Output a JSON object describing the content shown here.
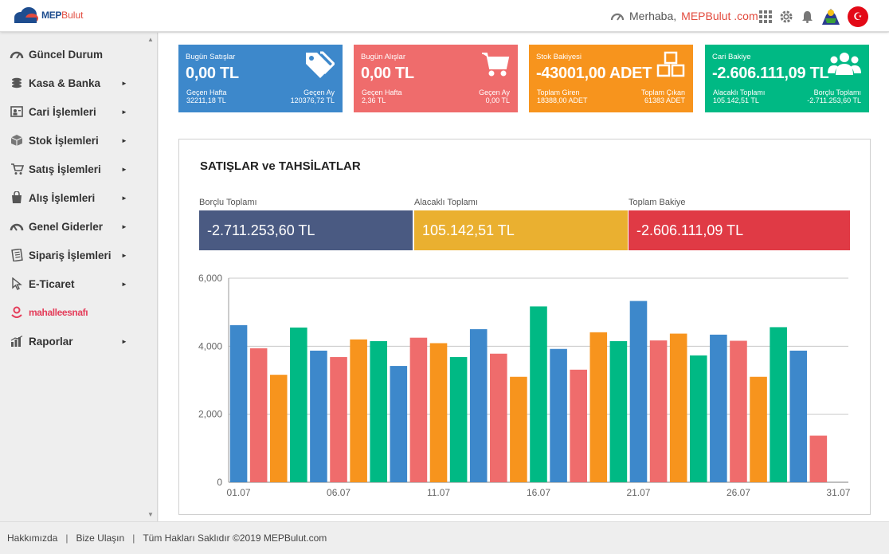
{
  "header": {
    "logo_text": "MEP",
    "logo_text2": "Bulut",
    "greeting": "Merhaba,",
    "user": "MEPBulut .com"
  },
  "sidebar": {
    "items": [
      {
        "label": "Güncel Durum",
        "icon": "speedometer-icon",
        "arrow": ""
      },
      {
        "label": "Kasa & Banka",
        "icon": "coins-icon",
        "arrow": "►"
      },
      {
        "label": "Cari İşlemleri",
        "icon": "contact-card-icon",
        "arrow": "►"
      },
      {
        "label": "Stok İşlemleri",
        "icon": "box-icon",
        "arrow": "►"
      },
      {
        "label": "Satış İşlemleri",
        "icon": "cart-icon",
        "arrow": "►"
      },
      {
        "label": "Alış İşlemleri",
        "icon": "shopping-bag-icon",
        "arrow": "►"
      },
      {
        "label": "Genel Giderler",
        "icon": "gauge-icon",
        "arrow": "►"
      },
      {
        "label": "Sipariş İşlemleri",
        "icon": "order-list-icon",
        "arrow": "►"
      },
      {
        "label": "E-Ticaret",
        "icon": "cursor-icon",
        "arrow": "►"
      },
      {
        "label": "mahalleesnafı",
        "icon": "location-pin-icon",
        "arrow": ""
      },
      {
        "label": "Raporlar",
        "icon": "bar-chart-icon",
        "arrow": "►"
      }
    ]
  },
  "cards": [
    {
      "label": "Bugün Satışlar",
      "value": "0,00 TL",
      "left_label": "Geçen Hafta",
      "left_value": "32211,18 TL",
      "right_label": "Geçen Ay",
      "right_value": "120376,72 TL",
      "color": "#3d88cb",
      "icon": "tags-icon"
    },
    {
      "label": "Bugün Alışlar",
      "value": "0,00 TL",
      "left_label": "Geçen Hafta",
      "left_value": "2,36 TL",
      "right_label": "Geçen Ay",
      "right_value": "0,00 TL",
      "color": "#ef6c6c",
      "icon": "shopping-cart-icon"
    },
    {
      "label": "Stok Bakiyesi",
      "value": "-43001,00 ADET",
      "left_label": "Toplam Giren",
      "left_value": "18388,00 ADET",
      "right_label": "Toplam Çıkan",
      "right_value": "61383 ADET",
      "color": "#f7941d",
      "icon": "cubes-icon"
    },
    {
      "label": "Cari Bakiye",
      "value": "-2.606.111,09 TL",
      "left_label": "Alacaklı Toplamı",
      "left_value": "105.142,51 TL",
      "right_label": "Borçlu Toplamı",
      "right_value": "-2.711.253,60 TL",
      "color": "#00b984",
      "icon": "users-icon"
    }
  ],
  "panel": {
    "title": "SATIŞLAR ve TAHSİLATLAR",
    "stats": [
      {
        "label": "Borçlu Toplamı",
        "value": "-2.711.253,60 TL",
        "color": "#4a5a82"
      },
      {
        "label": "Alacaklı Toplamı",
        "value": "105.142,51 TL",
        "color": "#eab030"
      },
      {
        "label": "Toplam Bakiye",
        "value": "-2.606.111,09 TL",
        "color": "#e03a45"
      }
    ]
  },
  "chart_data": {
    "type": "bar",
    "x": [
      "01.07",
      "02.07",
      "03.07",
      "04.07",
      "05.07",
      "06.07",
      "07.07",
      "08.07",
      "09.07",
      "10.07",
      "11.07",
      "12.07",
      "13.07",
      "14.07",
      "15.07",
      "16.07",
      "17.07",
      "18.07",
      "19.07",
      "20.07",
      "21.07",
      "22.07",
      "23.07",
      "24.07",
      "25.07",
      "26.07",
      "27.07",
      "28.07",
      "29.07",
      "30.07",
      "31.07"
    ],
    "x_tick_labels": [
      "01.07",
      "06.07",
      "11.07",
      "16.07",
      "21.07",
      "26.07",
      "31.07"
    ],
    "values": [
      4620,
      3940,
      3160,
      4550,
      3870,
      3680,
      4200,
      4150,
      3420,
      4250,
      4090,
      3680,
      4500,
      3780,
      3100,
      5170,
      3920,
      3310,
      4410,
      4150,
      5330,
      4170,
      4370,
      3730,
      4340,
      4160,
      3100,
      4560,
      3870,
      1370,
      0
    ],
    "colors": [
      "#3d88cb",
      "#ef6c6c",
      "#f7941d",
      "#00b984"
    ],
    "y_ticks": [
      "0",
      "2,000",
      "4,000",
      "6,000"
    ],
    "ylim": [
      0,
      6000
    ],
    "grid": true
  },
  "footer": {
    "about": "Hakkımızda",
    "sep1": "|",
    "contact": "Bize Ulaşın",
    "sep2": "|",
    "copyright": "Tüm Hakları Saklıdır ©2019 MEPBulut.com"
  }
}
